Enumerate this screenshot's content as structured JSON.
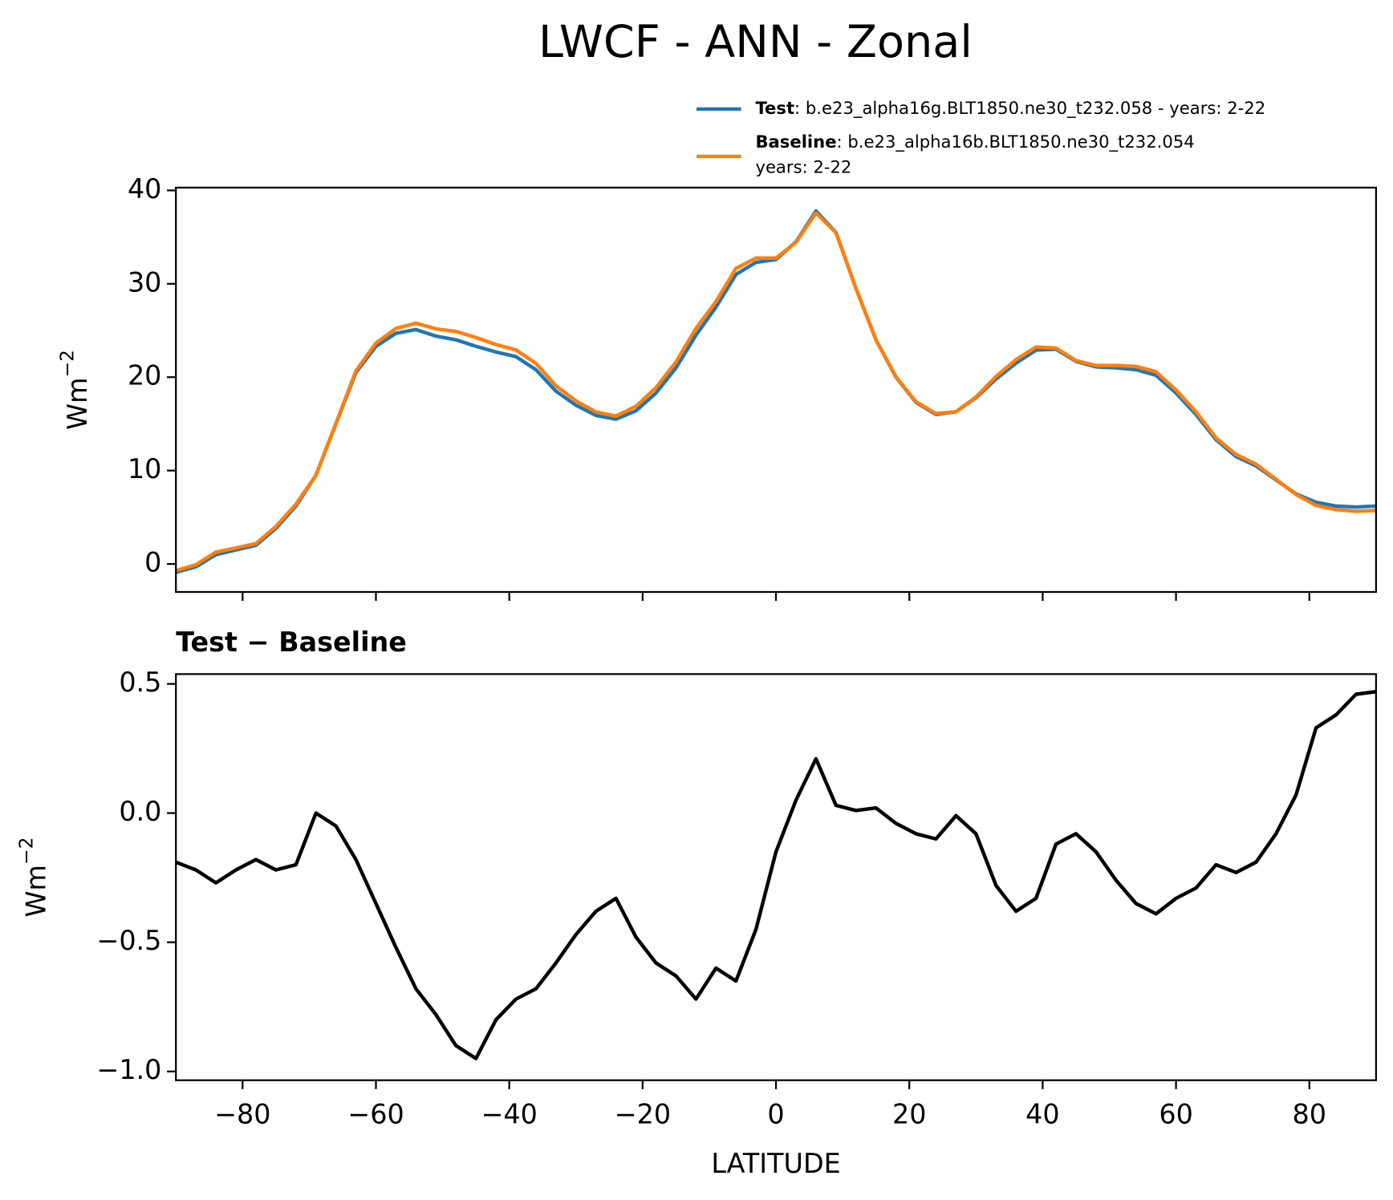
{
  "title": "LWCF - ANN - Zonal",
  "chart_data": [
    {
      "type": "line",
      "ylabel": "Wm",
      "ylabel_exponent": "−2",
      "x": [
        -90,
        -87,
        -84,
        -81,
        -78,
        -75,
        -72,
        -69,
        -66,
        -63,
        -60,
        -57,
        -54,
        -51,
        -48,
        -45,
        -42,
        -39,
        -36,
        -33,
        -30,
        -27,
        -24,
        -21,
        -18,
        -15,
        -12,
        -9,
        -6,
        -3,
        0,
        3,
        6,
        9,
        12,
        15,
        18,
        21,
        24,
        27,
        30,
        33,
        36,
        39,
        42,
        45,
        48,
        51,
        54,
        57,
        60,
        63,
        66,
        69,
        72,
        75,
        78,
        81,
        84,
        87,
        90
      ],
      "xlim": [
        -90,
        90
      ],
      "ylim": [
        -3,
        40.3
      ],
      "yticks": [
        0,
        10,
        20,
        30,
        40
      ],
      "series": [
        {
          "name": "Test",
          "description": [
            ": b.e23_alpha16g.BLT1850.ne30_t232.058 - years: 2-22"
          ],
          "color": "#1f77b4",
          "values": [
            -0.9,
            -0.3,
            1.0,
            1.5,
            2.0,
            3.8,
            6.2,
            9.5,
            15.0,
            20.5,
            23.3,
            24.7,
            25.1,
            24.4,
            24.0,
            23.3,
            22.7,
            22.2,
            20.8,
            18.5,
            17.0,
            15.9,
            15.5,
            16.4,
            18.3,
            21.0,
            24.5,
            27.5,
            31.0,
            32.3,
            32.6,
            34.5,
            37.8,
            35.5,
            29.5,
            24.0,
            20.0,
            17.3,
            16.0,
            16.3,
            17.8,
            19.8,
            21.5,
            22.9,
            23.0,
            21.7,
            21.1,
            21.0,
            20.8,
            20.2,
            18.3,
            16.0,
            13.3,
            11.5,
            10.5,
            9.0,
            7.5,
            6.6,
            6.2,
            6.1,
            6.2
          ]
        },
        {
          "name": "Baseline",
          "description": [
            ": b.e23_alpha16b.BLT1850.ne30_t232.054",
            "years: 2-22"
          ],
          "color": "#ff7f0e",
          "values": [
            -0.71,
            -0.08,
            1.27,
            1.72,
            2.18,
            4.02,
            6.4,
            9.5,
            15.05,
            20.68,
            23.65,
            25.22,
            25.78,
            25.18,
            24.9,
            24.25,
            23.5,
            22.92,
            21.48,
            19.08,
            17.47,
            16.28,
            15.83,
            16.88,
            18.88,
            21.63,
            25.22,
            28.1,
            31.65,
            32.75,
            32.75,
            34.45,
            37.59,
            35.47,
            29.49,
            23.98,
            20.04,
            17.38,
            16.1,
            16.31,
            17.88,
            20.08,
            21.88,
            23.23,
            23.12,
            21.78,
            21.25,
            21.26,
            21.15,
            20.59,
            18.63,
            16.29,
            13.5,
            11.73,
            10.69,
            9.08,
            7.43,
            6.27,
            5.82,
            5.64,
            5.73
          ]
        }
      ]
    },
    {
      "type": "line",
      "title": "Test − Baseline",
      "ylabel": "Wm",
      "ylabel_exponent": "−2",
      "xlabel": "LATITUDE",
      "x": [
        -90,
        -87,
        -84,
        -81,
        -78,
        -75,
        -72,
        -69,
        -66,
        -63,
        -60,
        -57,
        -54,
        -51,
        -48,
        -45,
        -42,
        -39,
        -36,
        -33,
        -30,
        -27,
        -24,
        -21,
        -18,
        -15,
        -12,
        -9,
        -6,
        -3,
        0,
        3,
        6,
        9,
        12,
        15,
        18,
        21,
        24,
        27,
        30,
        33,
        36,
        39,
        42,
        45,
        48,
        51,
        54,
        57,
        60,
        63,
        66,
        69,
        72,
        75,
        78,
        81,
        84,
        87,
        90
      ],
      "xlim": [
        -90,
        90
      ],
      "ylim": [
        -1.034,
        0.538
      ],
      "xticks": [
        {
          "value": -80,
          "label": "−80"
        },
        {
          "value": -60,
          "label": "−60"
        },
        {
          "value": -40,
          "label": "−40"
        },
        {
          "value": -20,
          "label": "−20"
        },
        0,
        20,
        40,
        60,
        80
      ],
      "yticks": [
        {
          "value": -1.0,
          "label": "−1.0"
        },
        {
          "value": -0.5,
          "label": "−0.5"
        },
        {
          "value": 0.0,
          "label": "0.0"
        },
        0.5
      ],
      "series": [
        {
          "color": "#000000",
          "values": [
            -0.19,
            -0.22,
            -0.27,
            -0.22,
            -0.18,
            -0.22,
            -0.2,
            0.0,
            -0.05,
            -0.18,
            -0.35,
            -0.52,
            -0.68,
            -0.78,
            -0.9,
            -0.95,
            -0.8,
            -0.72,
            -0.68,
            -0.58,
            -0.47,
            -0.38,
            -0.33,
            -0.48,
            -0.58,
            -0.63,
            -0.72,
            -0.6,
            -0.65,
            -0.45,
            -0.15,
            0.05,
            0.21,
            0.03,
            0.01,
            0.02,
            -0.04,
            -0.08,
            -0.1,
            -0.01,
            -0.08,
            -0.28,
            -0.38,
            -0.33,
            -0.12,
            -0.08,
            -0.15,
            -0.26,
            -0.35,
            -0.39,
            -0.33,
            -0.29,
            -0.2,
            -0.23,
            -0.19,
            -0.08,
            0.07,
            0.33,
            0.38,
            0.46,
            0.47
          ]
        }
      ]
    }
  ]
}
